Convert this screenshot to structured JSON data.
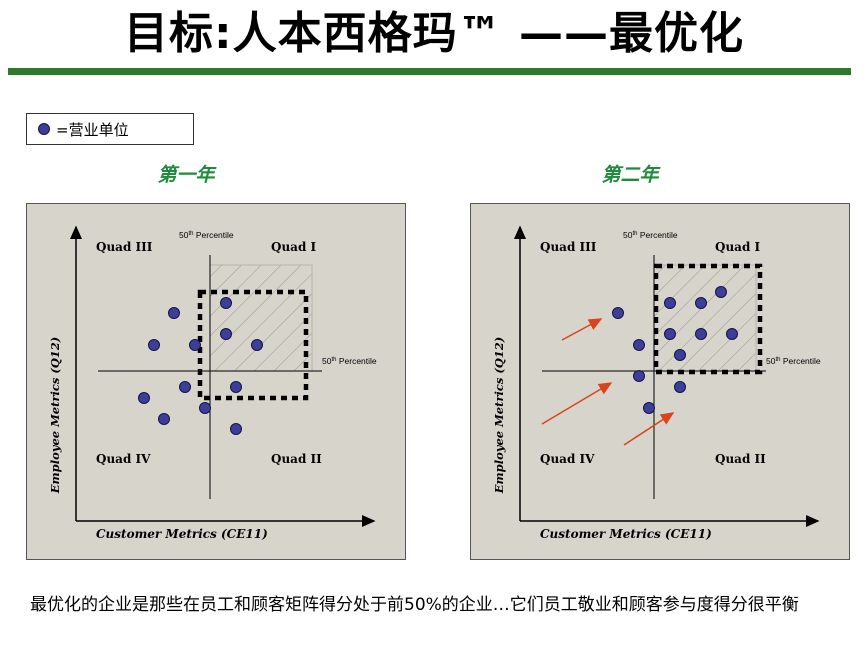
{
  "title": "目标:人本西格玛™ ——最优化",
  "legend": {
    "label": "=营业单位"
  },
  "caption": "最优化的企业是那些在员工和顾客矩阵得分处于前50%的企业…它们员工敬业和顾客参与度得分很平衡",
  "colors": {
    "rule": "#2c7a2c",
    "panel_bg": "#d7d4cc",
    "dot": "#3c3f9a",
    "arrow": "#d9441c",
    "panel_title": "#1e8c3a"
  },
  "panels": [
    {
      "title": "第一年",
      "x_label": "Customer Metrics (CE11)",
      "y_label": "Employee Metrics (Q12)",
      "pct_x_label": "50",
      "pct_x_sup": "th",
      "pct_x_word": " Percentile",
      "pct_y_label": "50",
      "pct_y_sup": "th",
      "pct_y_word": " Percentile",
      "quads": {
        "q1": "Quad I",
        "q2": "Quad II",
        "q3": "Quad III",
        "q4": "Quad IV"
      }
    },
    {
      "title": "第二年",
      "x_label": "Customer Metrics (CE11)",
      "y_label": "Employee Metrics (Q12)",
      "pct_x_label": "50",
      "pct_x_sup": "th",
      "pct_x_word": " Percentile",
      "pct_y_label": "50",
      "pct_y_sup": "th",
      "pct_y_word": " Percentile",
      "quads": {
        "q1": "Quad I",
        "q2": "Quad II",
        "q3": "Quad III",
        "q4": "Quad IV"
      }
    }
  ]
}
